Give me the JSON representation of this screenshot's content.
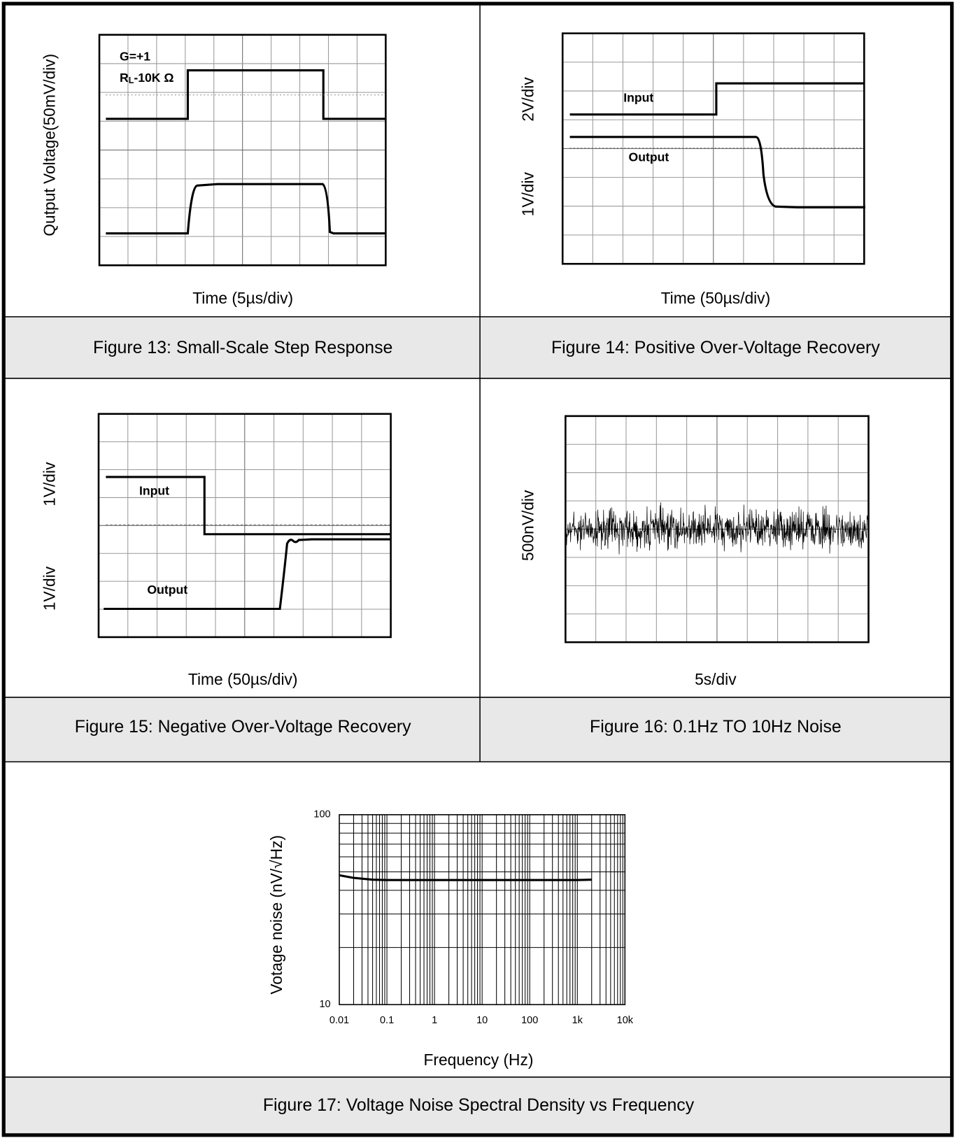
{
  "figures": [
    {
      "caption": "Figure 13: Small-Scale Step Response",
      "y_label": "Qutput Voltage(50mV/div)",
      "x_label": "Time (5µs/div)",
      "annotations": [
        "G=+1",
        "R",
        "L",
        "-10K Ω"
      ]
    },
    {
      "caption": "Figure 14: Positive Over-Voltage Recovery",
      "y_labels": [
        "2V/div",
        "1V/div"
      ],
      "x_label": "Time (50µs/div)",
      "annotations": [
        "Input",
        "Output"
      ]
    },
    {
      "caption": "Figure 15: Negative Over-Voltage Recovery",
      "y_labels": [
        "1V/div",
        "1V/div"
      ],
      "x_label": "Time (50µs/div)",
      "annotations": [
        "Input",
        "Output"
      ]
    },
    {
      "caption": "Figure 16: 0.1Hz TO 10Hz Noise",
      "y_label": "500nV/div",
      "x_label": "5s/div"
    },
    {
      "caption": "Figure 17: Voltage Noise Spectral Density vs Frequency",
      "chart": {
        "type": "line",
        "x_label": "Frequency (Hz)",
        "y_label": "Votage noise (nV/√Hz)",
        "x": [
          0.01,
          0.02,
          0.05,
          0.1,
          1,
          10,
          100,
          1000,
          2000
        ],
        "values": [
          48,
          46.5,
          45.5,
          45.3,
          45.3,
          45.3,
          45.3,
          45.3,
          45.5
        ],
        "color": "#000000",
        "xlim": [
          0.01,
          10000
        ],
        "ylim": [
          10,
          100
        ],
        "xticks": [
          0.01,
          0.1,
          1,
          10,
          100,
          {
            "value": 1000,
            "label": "1k"
          },
          {
            "value": 10000,
            "label": "10k"
          }
        ],
        "yticks": [
          10,
          100
        ],
        "log_x": true,
        "log_y": true,
        "grid": true
      }
    }
  ]
}
